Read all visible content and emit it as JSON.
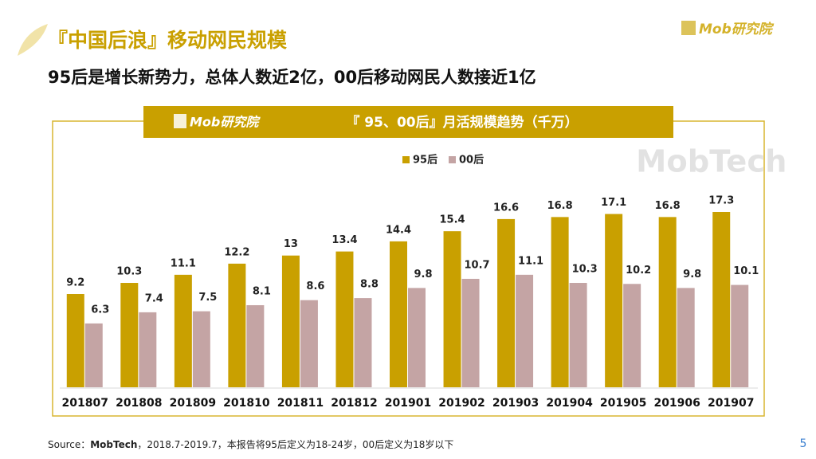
{
  "slide": {
    "title": "『中国后浪』移动网民规模",
    "subtitle": "95后是增长新势力，总体人数近2亿，00后移动网民人数接近1亿",
    "brand": "Mob研究院",
    "watermark": "MobTech",
    "source_prefix": "Source：",
    "source_name": "MobTech",
    "source_rest": "，2018.7-2019.7，本报告将95后定义为18-24岁，00后定义为18岁以下",
    "page_number": "5"
  },
  "chart_data": {
    "type": "bar",
    "title": "『 95、00后』月活规模趋势（千万）",
    "categories": [
      "201807",
      "201808",
      "201809",
      "201810",
      "201811",
      "201812",
      "201901",
      "201902",
      "201903",
      "201904",
      "201905",
      "201906",
      "201907"
    ],
    "series": [
      {
        "name": "95后",
        "color": "#c9a000",
        "values": [
          9.2,
          10.3,
          11.1,
          12.2,
          13,
          13.4,
          14.4,
          15.4,
          16.6,
          16.8,
          17.1,
          16.8,
          17.3
        ]
      },
      {
        "name": "00后",
        "color": "#c4a4a4",
        "values": [
          6.3,
          7.4,
          7.5,
          8.1,
          8.6,
          8.8,
          9.8,
          10.7,
          11.1,
          10.3,
          10.2,
          9.8,
          10.1
        ]
      }
    ],
    "legend": "top"
  }
}
